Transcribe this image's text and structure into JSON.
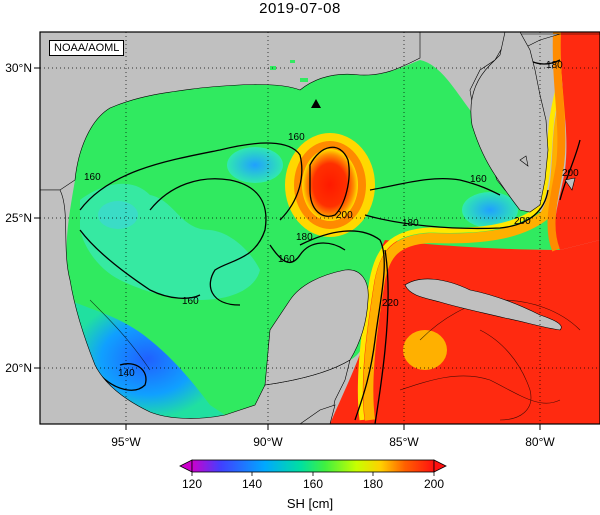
{
  "title": "2019-07-08",
  "credit": "NOAA/AOML",
  "map": {
    "lon_labels": [
      "95°W",
      "90°W",
      "85°W",
      "80°W"
    ],
    "lat_labels": [
      "30°N",
      "25°N",
      "20°N"
    ],
    "contour_labels": [
      "160",
      "160",
      "160",
      "160",
      "160",
      "140",
      "180",
      "180",
      "180",
      "200",
      "200",
      "200",
      "220"
    ]
  },
  "colorbar": {
    "ticks": [
      "120",
      "140",
      "160",
      "180",
      "200"
    ],
    "unit": "SH [cm]",
    "colors": [
      "#cc00cc",
      "#2020ff",
      "#00c8ff",
      "#00e060",
      "#80ff00",
      "#ffff00",
      "#ff8000",
      "#ff2000"
    ]
  }
}
